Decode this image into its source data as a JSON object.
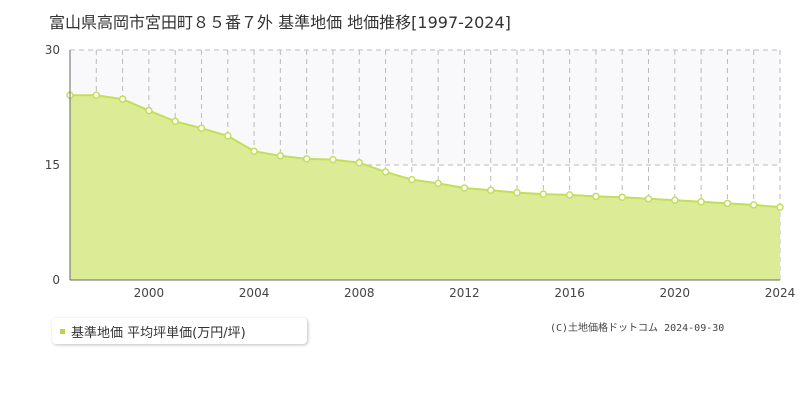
{
  "header": {
    "title": "富山県高岡市宮田町８５番７外 基準地価 地価推移[1997-2024]"
  },
  "footer": {
    "copyright": "(C)土地価格ドットコム 2024-09-30"
  },
  "colors": {
    "fill": "#dcec96",
    "line": "#c2de5a",
    "point_fill": "#ffffff",
    "upper_band": "#f9f9fb",
    "grid": "#bbbbbb",
    "axis": "#666666",
    "legend_marker": "#b9d64a"
  },
  "chart_data": {
    "type": "area",
    "title": "富山県高岡市宮田町８５番７外 基準地価 地価推移[1997-2024]",
    "xlim": [
      1997,
      2024
    ],
    "ylim": [
      0,
      30
    ],
    "y_ticks": [
      0,
      15,
      30
    ],
    "x_ticks": [
      2000,
      2004,
      2008,
      2012,
      2016,
      2020,
      2024
    ],
    "grid": true,
    "legend_position": "bottom-left",
    "series": [
      {
        "name": "基準地価 平均坪単価(万円/坪)",
        "x": [
          1997,
          1998,
          1999,
          2000,
          2001,
          2002,
          2003,
          2004,
          2005,
          2006,
          2007,
          2008,
          2009,
          2010,
          2011,
          2012,
          2013,
          2014,
          2015,
          2016,
          2017,
          2018,
          2019,
          2020,
          2021,
          2022,
          2023,
          2024
        ],
        "y": [
          24.1,
          24.1,
          23.6,
          22.1,
          20.7,
          19.8,
          18.8,
          16.8,
          16.2,
          15.8,
          15.7,
          15.3,
          14.1,
          13.1,
          12.6,
          12.0,
          11.7,
          11.4,
          11.2,
          11.1,
          10.9,
          10.8,
          10.6,
          10.4,
          10.2,
          10.0,
          9.8,
          9.5
        ]
      }
    ]
  }
}
